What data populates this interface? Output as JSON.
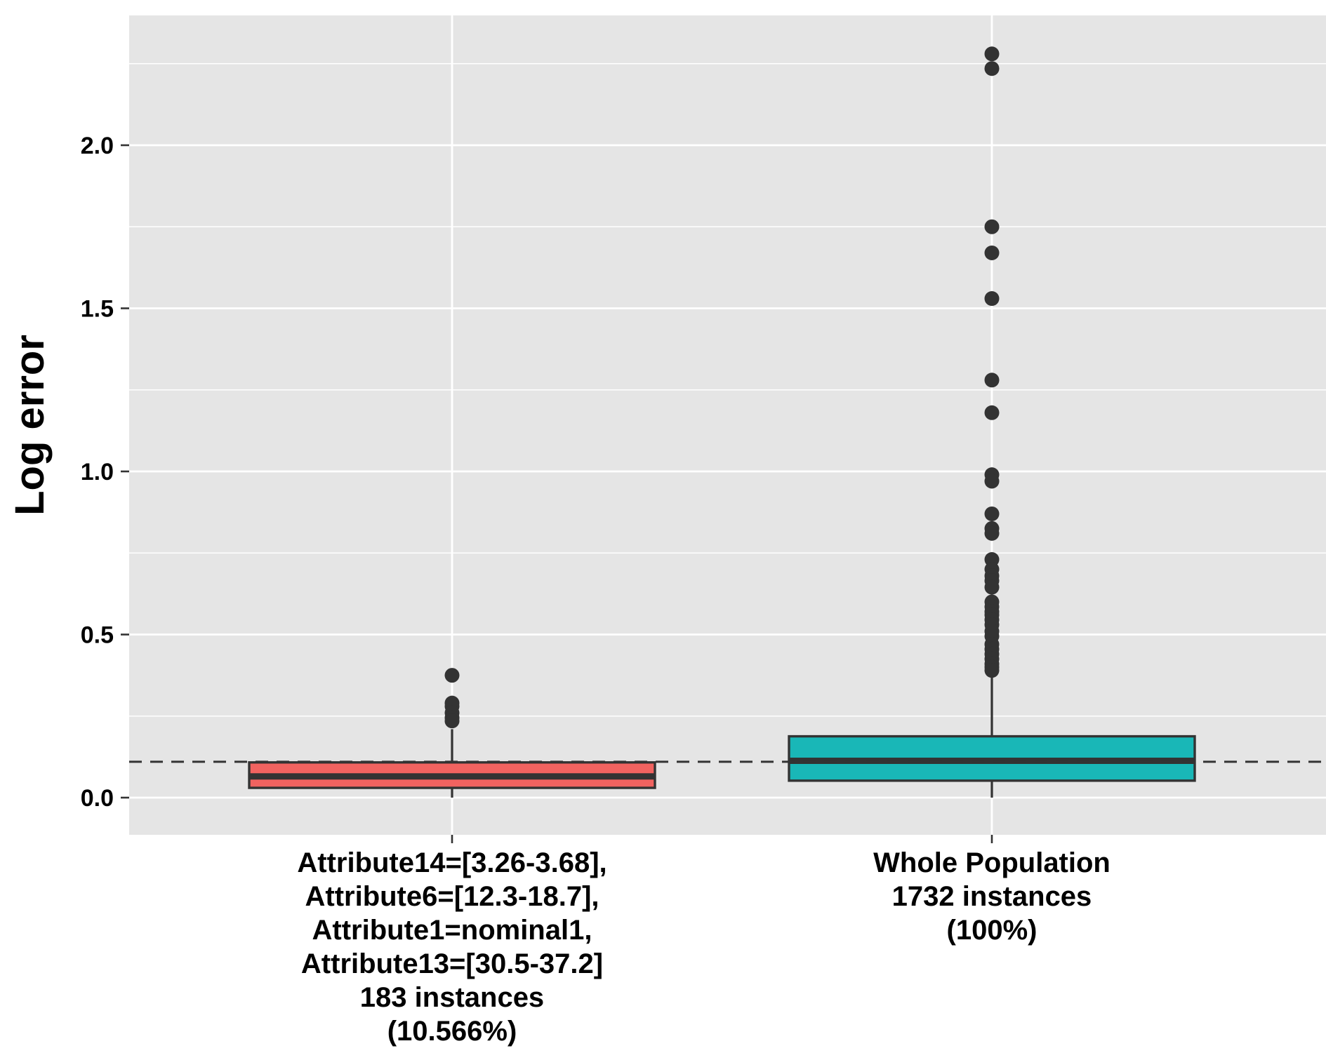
{
  "chart_data": {
    "type": "boxplot",
    "title": "",
    "xlabel": "",
    "ylabel": "Log error",
    "ylim": [
      -0.11,
      2.34
    ],
    "yticks": [
      0.0,
      0.5,
      1.0,
      1.5,
      2.0
    ],
    "ytick_labels": [
      "0.0",
      "0.5",
      "1.0",
      "1.5",
      "2.0"
    ],
    "reference_line": 0.11,
    "grid": true,
    "legend": "none",
    "background": "#e5e5e5",
    "categories": [
      {
        "label_lines": [
          "Attribute14=[3.26-3.68],",
          "Attribute6=[12.3-18.7],",
          "Attribute1=nominal1,",
          "Attribute13=[30.5-37.2]",
          "183 instances",
          "(10.566%)"
        ],
        "color": "#f16360",
        "min": 0.0,
        "q1": 0.03,
        "median": 0.065,
        "q3": 0.108,
        "max": 0.21,
        "outliers": [
          0.375,
          0.29,
          0.28,
          0.26,
          0.245,
          0.235
        ]
      },
      {
        "label_lines": [
          "Whole Population",
          "1732 instances",
          "(100%)"
        ],
        "color": "#19b7b7",
        "min": 0.0,
        "q1": 0.052,
        "median": 0.113,
        "q3": 0.188,
        "max": 0.39,
        "outliers": [
          2.28,
          2.235,
          1.75,
          1.67,
          1.53,
          1.28,
          1.18,
          0.99,
          0.97,
          0.87,
          0.825,
          0.81,
          0.73,
          0.7,
          0.68,
          0.665,
          0.645,
          0.6,
          0.585,
          0.57,
          0.56,
          0.545,
          0.53,
          0.51,
          0.495,
          0.47,
          0.455,
          0.44,
          0.425,
          0.41,
          0.4,
          0.39
        ]
      }
    ]
  }
}
